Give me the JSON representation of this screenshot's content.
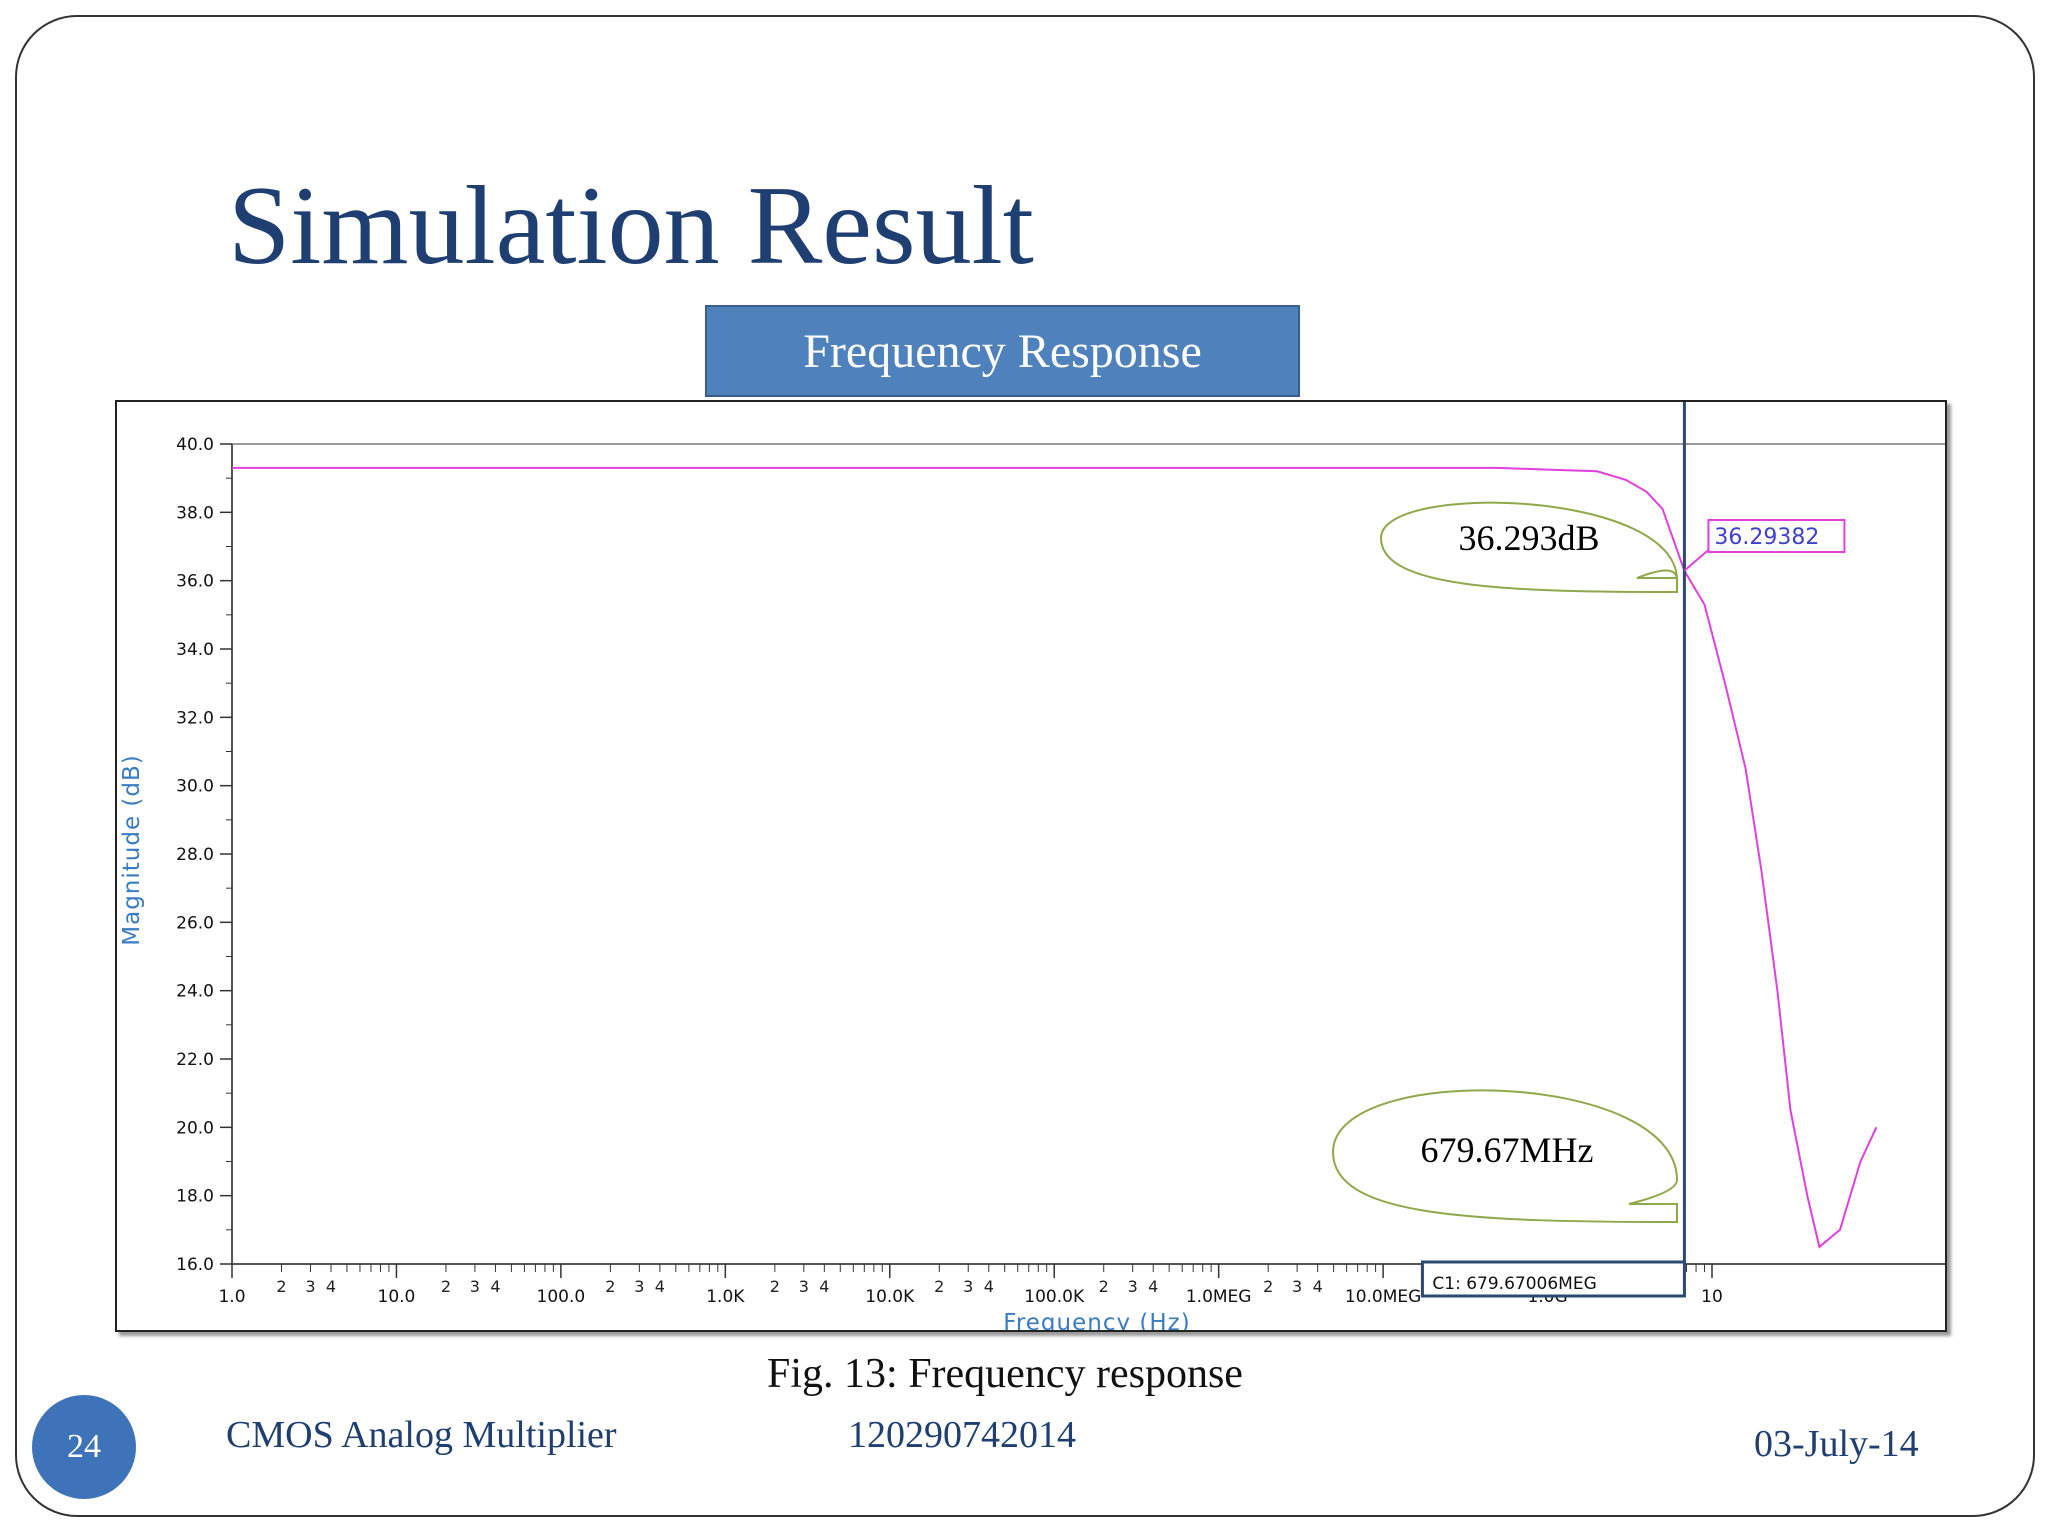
{
  "slide": {
    "title": "Simulation Result",
    "banner": "Frequency Response",
    "caption": "Fig. 13: Frequency  response",
    "slide_number": "24",
    "footer_left": "CMOS Analog Multiplier",
    "footer_center": "120290742014",
    "footer_right": "03-July-14"
  },
  "colors": {
    "title": "#1f3f73",
    "banner": "#4f81bd",
    "trace": "#e040e0",
    "cursor": "#2b4a70",
    "callout": "#8fa84a",
    "axis_title": "#3a7cc4"
  },
  "chart_data": {
    "type": "line",
    "xlabel": "Frequency (Hz)",
    "ylabel": "Magnitude (dB)",
    "x_scale": "log",
    "xlim": [
      1,
      10000000000
    ],
    "ylim": [
      16,
      40
    ],
    "y_ticks": [
      "40.0",
      "38.0",
      "36.0",
      "34.0",
      "32.0",
      "30.0",
      "28.0",
      "26.0",
      "24.0",
      "22.0",
      "20.0",
      "18.0",
      "16.0"
    ],
    "x_ticks": [
      "1.0",
      "10.0",
      "100.0",
      "1.0K",
      "10.0K",
      "100.0K",
      "1.0MEG",
      "10.0MEG",
      "1.0G",
      "10"
    ],
    "x_minor_labels": [
      "2",
      "3",
      "4"
    ],
    "series": [
      {
        "color": "#e040e0",
        "x": [
          1,
          10,
          100,
          1000,
          10000,
          100000,
          1000000,
          10000000,
          50000000,
          100000000,
          200000000,
          300000000,
          400000000,
          500000000,
          679670060,
          900000000,
          1200000000,
          1600000000,
          2000000000,
          2500000000,
          3000000000,
          3800000000,
          4500000000,
          6000000000,
          8000000000,
          10000000000
        ],
        "y": [
          39.3,
          39.3,
          39.3,
          39.3,
          39.3,
          39.3,
          39.3,
          39.3,
          39.3,
          39.25,
          39.2,
          38.95,
          38.6,
          38.1,
          36.29,
          35.3,
          33.0,
          30.5,
          27.5,
          24.0,
          20.5,
          18.0,
          16.5,
          17.0,
          19.0,
          20.0
        ]
      }
    ],
    "cursor": {
      "label": "C1: 679.67006MEG",
      "x": 679670060,
      "value_label": "36.29382"
    },
    "annotations": [
      "36.293dB",
      "679.67MHz"
    ]
  }
}
